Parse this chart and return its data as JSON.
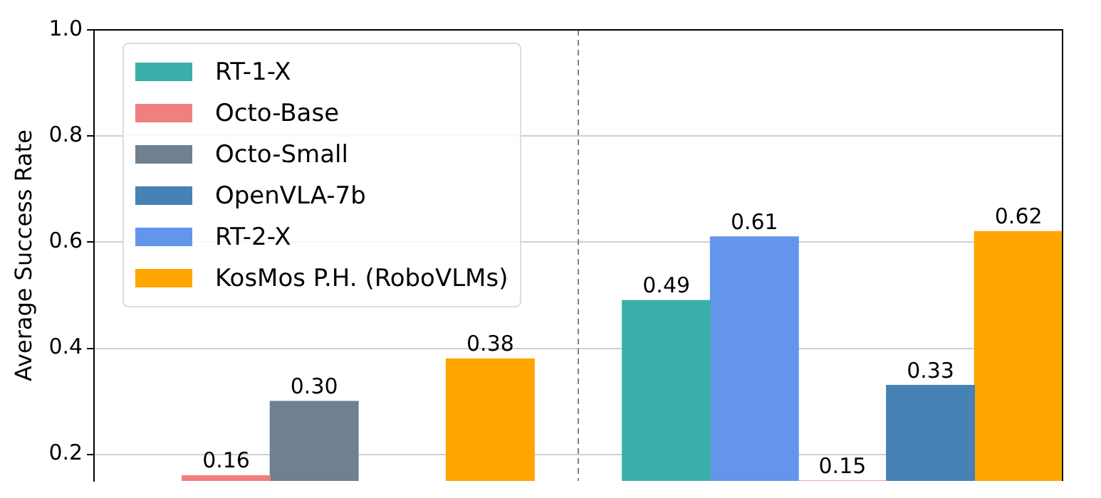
{
  "chart_data": {
    "type": "bar",
    "ylabel": "Average Success Rate",
    "categories": [
      null,
      null,
      null,
      null,
      null,
      null,
      null,
      null,
      null,
      null,
      null
    ],
    "ylim": [
      0.15,
      1.0
    ],
    "yticks": [
      0.2,
      0.4,
      0.6,
      0.8,
      {
        "value": 1,
        "label": "1.0"
      }
    ],
    "tick_labels": "y",
    "grid": "y",
    "legend": "top left",
    "data_labels": true,
    "ref_lines": [
      {
        "axis": "x",
        "line_style": "dashed",
        "color": "#808080"
      }
    ],
    "series": [
      {
        "name": "RT-1-X",
        "color": "#3aafa9",
        "values": [
          null,
          null,
          null,
          null,
          null,
          null,
          0.49,
          null,
          null,
          null,
          null
        ]
      },
      {
        "name": "Octo-Base",
        "color": "#f08080",
        "values": [
          null,
          0.16,
          null,
          null,
          null,
          null,
          null,
          null,
          0.15,
          null,
          null
        ]
      },
      {
        "name": "Octo-Small",
        "color": "#708090",
        "values": [
          null,
          null,
          0.3,
          null,
          null,
          null,
          null,
          null,
          null,
          null,
          null
        ],
        "value_labels": [
          null,
          null,
          "0.30",
          null,
          null,
          null,
          null,
          null,
          null,
          null,
          null
        ]
      },
      {
        "name": "OpenVLA-7b",
        "color": "#4682b4",
        "values": [
          null,
          null,
          null,
          null,
          null,
          null,
          null,
          null,
          null,
          0.33,
          null
        ]
      },
      {
        "name": "RT-2-X",
        "color": "#6495ed",
        "values": [
          null,
          null,
          null,
          null,
          null,
          null,
          null,
          0.61,
          null,
          null,
          null
        ]
      },
      {
        "name": "KosMos P.H. (RoboVLMs)",
        "color": "#ffa500",
        "values": [
          null,
          null,
          null,
          null,
          0.38,
          null,
          null,
          null,
          null,
          null,
          0.62
        ]
      }
    ]
  }
}
